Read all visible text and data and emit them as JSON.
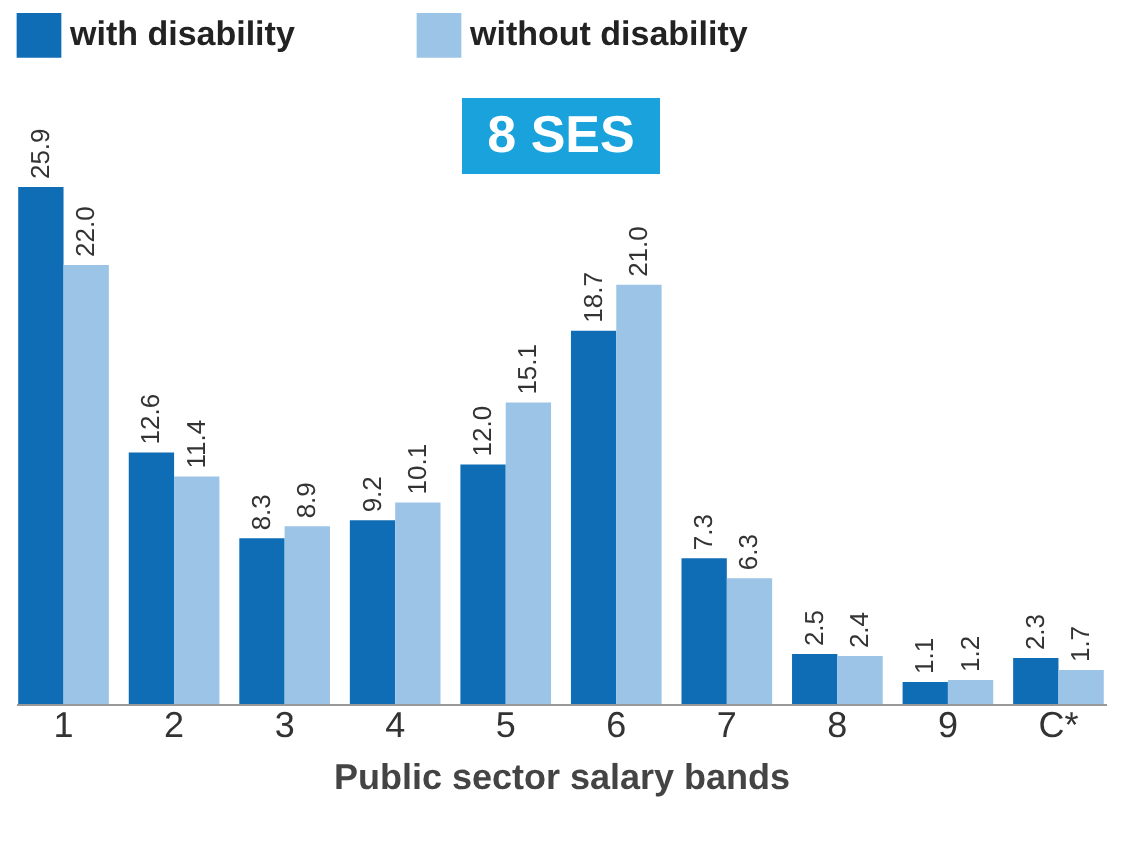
{
  "chart_data": {
    "type": "bar",
    "title": "8 SES",
    "xlabel": "Public sector salary bands",
    "categories": [
      "1",
      "2",
      "3",
      "4",
      "5",
      "6",
      "7",
      "8",
      "9",
      "C*"
    ],
    "series": [
      {
        "name": "with disability",
        "color": "#0f6db5",
        "values": [
          25.9,
          12.6,
          8.3,
          9.2,
          12.0,
          18.7,
          7.3,
          2.5,
          1.1,
          2.3
        ],
        "value_labels": [
          "25.9",
          "12.6",
          "8.3",
          "9.2",
          "12.0",
          "18.7",
          "7.3",
          "2.5",
          "1.1",
          "2.3"
        ]
      },
      {
        "name": "without disability",
        "color": "#9cc4e6",
        "values": [
          22.0,
          11.4,
          8.9,
          10.1,
          15.1,
          21.0,
          6.3,
          2.4,
          1.2,
          1.7
        ],
        "value_labels": [
          "22.0",
          "11.4",
          "8.9",
          "10.1",
          "15.1",
          "21.0",
          "6.3",
          "2.4",
          "1.2",
          "1.7"
        ]
      }
    ],
    "legend": "top"
  }
}
